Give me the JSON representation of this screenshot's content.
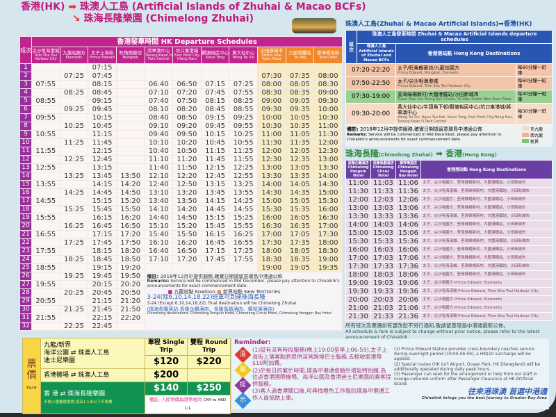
{
  "left": {
    "title_hk": "香港(HK)",
    "title_dest1": "珠澳人工島 (Artificial Islands of Zhuhai & Macao BCFs)",
    "title_dest2": "珠海長隆樂園 (Chimelong Zhuhai)",
    "trip_label": "班次",
    "header": "香港發車時間 HK Departure Schedules",
    "columns": [
      {
        "zh": "尖沙咀海港城",
        "en": "Tsim Sha Tsui Harbour City",
        "region": "kowloon"
      },
      {
        "zh": "九龍站圓方",
        "en": "Elements",
        "region": "kowloon"
      },
      {
        "zh": "太子上海街",
        "en": "Prince Edward",
        "region": "kowloon"
      },
      {
        "zh": "旺角朗豪坊",
        "en": "Mongkok",
        "region": "kowloon"
      },
      {
        "zh": "將軍澳中心",
        "en": "Tseung Kwan O Park Central",
        "region": "kowloon"
      },
      {
        "zh": "坑口東港城",
        "en": "East Point City (Hang Hau)",
        "region": "kowloon"
      },
      {
        "zh": "觀塘裕民中心",
        "en": "Kwun Tong",
        "region": "kowloon"
      },
      {
        "zh": "黃大仙中心",
        "en": "Wong Tai Sin",
        "region": "kowloon"
      },
      {
        "zh": "沙田新城市",
        "en": "Shatin New Town Plaza",
        "region": "nt"
      },
      {
        "zh": "大圍港鐵站",
        "en": "Tai Wai",
        "region": "nt"
      },
      {
        "zh": "荃灣德海街",
        "en": "Tsuen Wan",
        "region": "nt"
      }
    ],
    "rows": [
      [
        "",
        "",
        "07:15",
        "",
        "",
        "",
        "",
        "",
        "",
        "",
        ""
      ],
      [
        "",
        "07:25",
        "07:45",
        "",
        "",
        "",
        "",
        "",
        "07:30",
        "07:35",
        "08:00"
      ],
      [
        "07:55",
        "",
        "08:15",
        "",
        "06:40",
        "06:50",
        "07:15",
        "07:25",
        "08:00",
        "08:05",
        "08:30"
      ],
      [
        "",
        "08:25",
        "08:45",
        "",
        "07:10",
        "07:20",
        "07:45",
        "07:55",
        "08:30",
        "08:35",
        "09:00"
      ],
      [
        "08:55",
        "",
        "09:15",
        "",
        "07:40",
        "07:50",
        "08:15",
        "08:25",
        "09:00",
        "09:05",
        "09:30"
      ],
      [
        "",
        "09:25",
        "09:45",
        "",
        "08:10",
        "08:20",
        "08:45",
        "08:55",
        "09:30",
        "09:35",
        "10:00"
      ],
      [
        "09:55",
        "",
        "10:15",
        "",
        "08:40",
        "08:50",
        "09:15",
        "09:25",
        "10:00",
        "10:05",
        "10:30"
      ],
      [
        "",
        "10:25",
        "10:45",
        "",
        "09:10",
        "09:20",
        "09:45",
        "09:55",
        "10:30",
        "10:35",
        "11:00"
      ],
      [
        "10:55",
        "",
        "11:15",
        "",
        "09:40",
        "09:50",
        "10:15",
        "10:25",
        "11:00",
        "11:05",
        "11:30"
      ],
      [
        "",
        "11:25",
        "11:45",
        "",
        "10:10",
        "10:20",
        "10:45",
        "10:55",
        "11:30",
        "11:35",
        "12:00"
      ],
      [
        "11:55",
        "",
        "12:15",
        "",
        "10:40",
        "10:50",
        "11:15",
        "11:25",
        "12:00",
        "12:05",
        "12:30"
      ],
      [
        "",
        "12:25",
        "12:45",
        "",
        "11:10",
        "11:20",
        "11:45",
        "11:55",
        "12:30",
        "12:35",
        "13:00"
      ],
      [
        "12:55",
        "",
        "13:15",
        "",
        "11:40",
        "11:50",
        "12:15",
        "12:25",
        "13:00",
        "13:05",
        "13:30"
      ],
      [
        "",
        "13:25",
        "13:45",
        "13:50",
        "12:10",
        "12:20",
        "12:45",
        "12:55",
        "13:30",
        "13:35",
        "14:00"
      ],
      [
        "13:55",
        "",
        "14:15",
        "14:20",
        "12:40",
        "12:50",
        "13:15",
        "13:25",
        "14:00",
        "14:05",
        "14:30"
      ],
      [
        "",
        "14:25",
        "14:45",
        "14:50",
        "13:10",
        "13:20",
        "13:45",
        "13:55",
        "14:30",
        "14:35",
        "15:00"
      ],
      [
        "14:55",
        "",
        "15:15",
        "15:20",
        "13:40",
        "13:50",
        "14:15",
        "14:25",
        "15:00",
        "15:05",
        "15:30"
      ],
      [
        "",
        "15:25",
        "15:45",
        "15:50",
        "14:10",
        "14:20",
        "14:45",
        "14:55",
        "15:30",
        "15:35",
        "16:00"
      ],
      [
        "15:55",
        "",
        "16:15",
        "16:20",
        "14:40",
        "14:50",
        "15:15",
        "15:25",
        "16:00",
        "16:05",
        "16:30"
      ],
      [
        "",
        "16:25",
        "16:45",
        "16:50",
        "15:10",
        "15:20",
        "15:45",
        "15:55",
        "16:30",
        "16:35",
        "17:00"
      ],
      [
        "16:55",
        "",
        "17:15",
        "17:20",
        "15:40",
        "15:50",
        "16:15",
        "16:25",
        "17:00",
        "17:05",
        "17:30"
      ],
      [
        "",
        "17:25",
        "17:45",
        "17:50",
        "16:10",
        "16:20",
        "16:45",
        "16:55",
        "17:30",
        "17:35",
        "18:00"
      ],
      [
        "17:55",
        "",
        "18:15",
        "18:20",
        "16:40",
        "16:50",
        "17:15",
        "17:25",
        "18:00",
        "18:05",
        "18:30"
      ],
      [
        "",
        "18:25",
        "18:45",
        "18:50",
        "17:10",
        "17:20",
        "17:45",
        "17:55",
        "18:30",
        "18:35",
        "19:00"
      ],
      [
        "18:55",
        "",
        "19:15",
        "19:20",
        "",
        "",
        "",
        "",
        "19:00",
        "19:05",
        "19:35"
      ],
      [
        "",
        "19:25",
        "19:45",
        "19:50",
        "",
        "",
        "",
        "",
        "",
        "",
        ""
      ],
      [
        "19:55",
        "",
        "20:15",
        "20:20",
        "",
        "",
        "",
        "",
        "",
        "",
        ""
      ],
      [
        "",
        "20:25",
        "20:45",
        "20:50",
        "",
        "",
        "",
        "",
        "",
        "",
        ""
      ],
      [
        "20:55",
        "",
        "21:15",
        "21:20",
        "",
        "",
        "",
        "",
        "",
        "",
        ""
      ],
      [
        "",
        "21:25",
        "21:45",
        "21:50",
        "",
        "",
        "",
        "",
        "",
        "",
        ""
      ],
      [
        "21:55",
        "",
        "22:15",
        "22:20",
        "",
        "",
        "",
        "",
        "",
        "",
        ""
      ],
      [
        "",
        "22:25",
        "22:45",
        "",
        "",
        "",
        "",
        "",
        "",
        "",
        ""
      ]
    ],
    "remarks": {
      "label": "備註:",
      "label_en": "Remarks:",
      "zh": "2018年12月中提供服務,確實日期請留意環島中港通公佈",
      "en": "Service will be commenced in Mid December, please pay attention to Chinalink's announcements for exact commencement date.",
      "legend_kowloon": "九龍站點 Kowloon",
      "legend_nt": "新界站點 New Territories",
      "route_zh": "3-24(除6,10,14,18,22)班車可到達珠海長隆",
      "route_en": "3-24 (Except 6,10,14,18,22), final destination will be Chimelong Zhuhai",
      "dest_zh": "(珠海長隆落站:長隆企鵝酒店、長隆馬戲酒店、橫琴灣酒店)",
      "dest_en": "Chimelong destinations: Chimelong Penguin Hotel, Chimelong Circus Hotel, Chimelong Hengqin Bay Hotel"
    }
  },
  "right_top": {
    "title": "珠澳人工島(Zhuhai & Macao Artificial Islands)➡香港(HK)",
    "trip_label": "班次",
    "header": "珠澳人工島發車時間 Zhuhai & Macao Artificial Islands departure schedules",
    "col_origin": "珠澳人工島 Artificial Islands of Zhuhai and Macao BCFs",
    "col_dest": "香港落站點 Hong Kong Destinations",
    "rows": [
      {
        "time": "07:20-22:20",
        "zh": "太子/旺角朗豪坊/九龍站圓方",
        "en": "Prince Edward, Mongkok, Elements",
        "freq": "每60分鐘一班車",
        "color": "#f3c4a8"
      },
      {
        "time": "07:50-22:50",
        "zh": "太子/尖沙咀海港城",
        "en": "Prince Edward, Tsim Sha Tsui Harbour City",
        "freq": "每60分鐘一班車",
        "color": "#f3c4a8"
      },
      {
        "time": "07:30-19:00",
        "zh": "荃灣綠楊新村/大圍港鐵站/沙田新城市",
        "en": "Tsuen Wan Luk Yeung Sun Chuen, Tai Wai, Shatin New Town Plaza",
        "freq": "每30分鐘一班車",
        "color": "#9ccf94"
      },
      {
        "time": "09:30-20:00",
        "zh": "黃大仙中心/牛頭角下邨/觀塘裕民中心/坑口東港城/將軍澳中心",
        "en": "Wong Tai Sin, Ngau Tau Kok, Kwun Tong, East Point City/Hang Hau, Tseung Kwan O Park Central",
        "freq": "每30分鐘一班車",
        "color": "#f6dcc8"
      }
    ],
    "remarks_label": "備註:",
    "remarks_label_en": "Remarks:",
    "remarks_zh": "2018年12月中提供服務,確實日期請留意環島中港通公佈",
    "remarks_en": "Service will be commenced in Mid December, please pay attention to Chinalink's announcements for exact commencement date.",
    "legend": [
      {
        "label": "东九龍",
        "color": "#f6dcc8"
      },
      {
        "label": "西九龍",
        "color": "#f3b08a"
      },
      {
        "label": "新界",
        "color": "#7fc07a"
      }
    ]
  },
  "right_bottom": {
    "title_zh_from": "珠海長隆",
    "title_en_from": "(Chimelong Zhuhai)",
    "title_zh_to": "香港",
    "title_en_to": "(Hong Kong)",
    "columns": [
      "長隆企鵝酒店 Chimelong Penguin Hotel",
      "長隆馬戲酒店 Chimelong Circus Hotel",
      "橫琴灣酒店 Chimelong Hengqin Bay Hotel",
      "香港落站點 Hong Kong Destinations"
    ],
    "rows": [
      [
        "11:00",
        "11:03",
        "11:06",
        "太子、尖沙咀圓方、荃灣綠楊新村、大圍港鐵站、沙田新城市"
      ],
      [
        "11:30",
        "11:33",
        "11:36",
        "太子、尖沙咀海港城、荃灣綠楊新村、大圍港鐵站、沙田新城市"
      ],
      [
        "12:00",
        "12:03",
        "12:06",
        "太子、尖沙咀圓方、荃灣綠楊新村、大圍港鐵站、沙田新城市"
      ],
      [
        "13:00",
        "13:03",
        "13:06",
        "太子、尖沙咀圓方、荃灣綠楊新村、大圍港鐵站、沙田新城市"
      ],
      [
        "13:30",
        "13:33",
        "13:36",
        "太子、尖沙咀海港城、荃灣綠楊新村、大圍港鐵站、沙田新城市"
      ],
      [
        "14:00",
        "14:03",
        "14:06",
        "太子、尖沙咀圓方、荃灣綠楊新村、大圍港鐵站、沙田新城市"
      ],
      [
        "15:00",
        "15:03",
        "15:06",
        "太子、尖沙咀圓方、荃灣綠楊新村、大圍港鐵站、沙田新城市"
      ],
      [
        "15:30",
        "15:33",
        "15:36",
        "太子、尖沙咀海港城、荃灣綠楊新村、大圍港鐵站、沙田新城市"
      ],
      [
        "16:00",
        "16:03",
        "16:06",
        "太子、尖沙咀圓方、荃灣綠楊新村、大圍港鐵站、沙田新城市"
      ],
      [
        "17:00",
        "17:03",
        "17:06",
        "太子、尖沙咀圓方、荃灣綠楊新村、大圍港鐵站、沙田新城市"
      ],
      [
        "17:30",
        "17:33",
        "17:36",
        "太子、尖沙咀海港城、荃灣綠楊新村、大圍港鐵站、沙田新城市"
      ],
      [
        "18:00",
        "18:03",
        "18:06",
        "太子、尖沙咀圓方、荃灣綠楊新村、大圍港鐵站、沙田新城市"
      ],
      [
        "19:00",
        "19:03",
        "19:06",
        "太子、尖沙咀圓方 Prince Edward, Elements"
      ],
      [
        "19:30",
        "19:33",
        "19:36",
        "太子、尖沙咀海港城 Prince Edward, Tsim Sha Tsui Harbour City"
      ],
      [
        "20:00",
        "20:03",
        "20:06",
        "太子、尖沙咀圓方 Prince Edward, Elements"
      ],
      [
        "21:00",
        "21:03",
        "21:06",
        "太子、尖沙咀圓方 Prince Edward, Elements"
      ],
      [
        "21:30",
        "21:33",
        "21:36",
        "太子、尖沙咀海港城 Prince Edward, Tsim Sha Tsui Harbour City"
      ]
    ],
    "notice_zh": "所有班次及票價如有更改恕不另行通知,敬請留意環島中港通最新公佈。",
    "notice_en": "All schedule & fare is subject to change without prior notice, please refer to the latest announcement of Chinalink."
  },
  "fare": {
    "label": "票價",
    "label_en": "Fare",
    "single": "單程 Single Trip",
    "round": "雙程 Round Trip",
    "route1_region": "九龍/新界",
    "route1_a": "海洋公園",
    "route1_b": "迪士尼樂園",
    "route1_to": "⇄ 珠澳人工島",
    "route1_single": "$120",
    "route1_round": "$220",
    "route2": "香港機場 ⇄ 珠澳人工島",
    "route2_single": "$200",
    "route2_round": "",
    "route3": "香 港 ⇄ 珠海長隆樂園",
    "route3_note": "不設小童優惠票價,身高1.1米以下不收費",
    "route3_single": "$140",
    "route3_round": "$250",
    "currency_note": "備註: 人民幣價與港幣相同",
    "currency_note_en": "CNY to HKD 1:1"
  },
  "reminder": {
    "title": "Reminder:",
    "badges": [
      {
        "char": "溫",
        "color": "#e2372b"
      },
      {
        "char": "馨",
        "color": "#f1c81c"
      },
      {
        "char": "提",
        "color": "#8b3aa0"
      },
      {
        "char": "示",
        "color": "#3a8fd8"
      }
    ],
    "items_zh": [
      "(1)設有深宵時段服務(晚上19:00至早上06:59),太子上海街上落客點將提供深宵跨境巴士服務,去程收取港幣$10附加費。",
      "(2)於每日的繁忙時間,環島中港通會額外增設特別線,為往返香港國際機場、海洋公園及香港迪士尼樂園的乘客提供服務。",
      "(3)客人過香港關口後,可尋找橙色工作服的環島中港通工作人員協助上車。"
    ],
    "items_en": [
      "(1) Prince Edward Station provides cross-boundary coaches service during overnight period (19:00-06:59), a HK$10 surcharge will be applied.",
      "(2) Special routes (HK int'l Airport, Ocean Park, HK Disneyland) will be additionally operated during daily peak hours.",
      "(3) Passenger can seek for the arrangement or help from our staff in orange-coloured uniform after Passenger Clearance at HK Artificial Island."
    ],
    "slogan": "往來港珠澳 首選中港通",
    "slogan_en": "Chinalink brings you the best journey to Greater Bay Area"
  }
}
